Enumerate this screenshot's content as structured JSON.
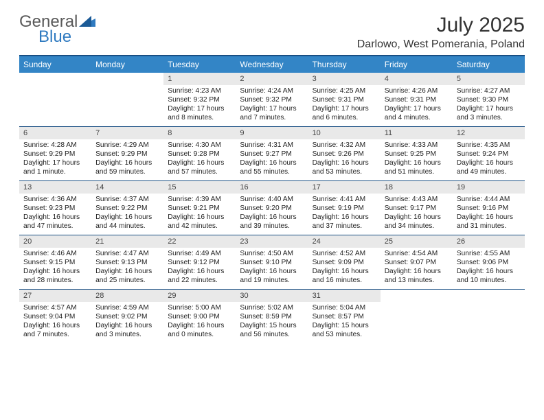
{
  "brand": {
    "word1": "General",
    "word2": "Blue"
  },
  "title": "July 2025",
  "location": "Darlowo, West Pomerania, Poland",
  "dayNames": [
    "Sunday",
    "Monday",
    "Tuesday",
    "Wednesday",
    "Thursday",
    "Friday",
    "Saturday"
  ],
  "colors": {
    "header_bg": "#3385c6",
    "border": "#184e83",
    "daynum_bg": "#e9e9e9",
    "brand_blue": "#2f7ac0",
    "text": "#222222"
  },
  "weeks": [
    [
      {
        "n": "",
        "lines": []
      },
      {
        "n": "",
        "lines": []
      },
      {
        "n": "1",
        "lines": [
          "Sunrise: 4:23 AM",
          "Sunset: 9:32 PM",
          "Daylight: 17 hours",
          "and 8 minutes."
        ]
      },
      {
        "n": "2",
        "lines": [
          "Sunrise: 4:24 AM",
          "Sunset: 9:32 PM",
          "Daylight: 17 hours",
          "and 7 minutes."
        ]
      },
      {
        "n": "3",
        "lines": [
          "Sunrise: 4:25 AM",
          "Sunset: 9:31 PM",
          "Daylight: 17 hours",
          "and 6 minutes."
        ]
      },
      {
        "n": "4",
        "lines": [
          "Sunrise: 4:26 AM",
          "Sunset: 9:31 PM",
          "Daylight: 17 hours",
          "and 4 minutes."
        ]
      },
      {
        "n": "5",
        "lines": [
          "Sunrise: 4:27 AM",
          "Sunset: 9:30 PM",
          "Daylight: 17 hours",
          "and 3 minutes."
        ]
      }
    ],
    [
      {
        "n": "6",
        "lines": [
          "Sunrise: 4:28 AM",
          "Sunset: 9:29 PM",
          "Daylight: 17 hours",
          "and 1 minute."
        ]
      },
      {
        "n": "7",
        "lines": [
          "Sunrise: 4:29 AM",
          "Sunset: 9:29 PM",
          "Daylight: 16 hours",
          "and 59 minutes."
        ]
      },
      {
        "n": "8",
        "lines": [
          "Sunrise: 4:30 AM",
          "Sunset: 9:28 PM",
          "Daylight: 16 hours",
          "and 57 minutes."
        ]
      },
      {
        "n": "9",
        "lines": [
          "Sunrise: 4:31 AM",
          "Sunset: 9:27 PM",
          "Daylight: 16 hours",
          "and 55 minutes."
        ]
      },
      {
        "n": "10",
        "lines": [
          "Sunrise: 4:32 AM",
          "Sunset: 9:26 PM",
          "Daylight: 16 hours",
          "and 53 minutes."
        ]
      },
      {
        "n": "11",
        "lines": [
          "Sunrise: 4:33 AM",
          "Sunset: 9:25 PM",
          "Daylight: 16 hours",
          "and 51 minutes."
        ]
      },
      {
        "n": "12",
        "lines": [
          "Sunrise: 4:35 AM",
          "Sunset: 9:24 PM",
          "Daylight: 16 hours",
          "and 49 minutes."
        ]
      }
    ],
    [
      {
        "n": "13",
        "lines": [
          "Sunrise: 4:36 AM",
          "Sunset: 9:23 PM",
          "Daylight: 16 hours",
          "and 47 minutes."
        ]
      },
      {
        "n": "14",
        "lines": [
          "Sunrise: 4:37 AM",
          "Sunset: 9:22 PM",
          "Daylight: 16 hours",
          "and 44 minutes."
        ]
      },
      {
        "n": "15",
        "lines": [
          "Sunrise: 4:39 AM",
          "Sunset: 9:21 PM",
          "Daylight: 16 hours",
          "and 42 minutes."
        ]
      },
      {
        "n": "16",
        "lines": [
          "Sunrise: 4:40 AM",
          "Sunset: 9:20 PM",
          "Daylight: 16 hours",
          "and 39 minutes."
        ]
      },
      {
        "n": "17",
        "lines": [
          "Sunrise: 4:41 AM",
          "Sunset: 9:19 PM",
          "Daylight: 16 hours",
          "and 37 minutes."
        ]
      },
      {
        "n": "18",
        "lines": [
          "Sunrise: 4:43 AM",
          "Sunset: 9:17 PM",
          "Daylight: 16 hours",
          "and 34 minutes."
        ]
      },
      {
        "n": "19",
        "lines": [
          "Sunrise: 4:44 AM",
          "Sunset: 9:16 PM",
          "Daylight: 16 hours",
          "and 31 minutes."
        ]
      }
    ],
    [
      {
        "n": "20",
        "lines": [
          "Sunrise: 4:46 AM",
          "Sunset: 9:15 PM",
          "Daylight: 16 hours",
          "and 28 minutes."
        ]
      },
      {
        "n": "21",
        "lines": [
          "Sunrise: 4:47 AM",
          "Sunset: 9:13 PM",
          "Daylight: 16 hours",
          "and 25 minutes."
        ]
      },
      {
        "n": "22",
        "lines": [
          "Sunrise: 4:49 AM",
          "Sunset: 9:12 PM",
          "Daylight: 16 hours",
          "and 22 minutes."
        ]
      },
      {
        "n": "23",
        "lines": [
          "Sunrise: 4:50 AM",
          "Sunset: 9:10 PM",
          "Daylight: 16 hours",
          "and 19 minutes."
        ]
      },
      {
        "n": "24",
        "lines": [
          "Sunrise: 4:52 AM",
          "Sunset: 9:09 PM",
          "Daylight: 16 hours",
          "and 16 minutes."
        ]
      },
      {
        "n": "25",
        "lines": [
          "Sunrise: 4:54 AM",
          "Sunset: 9:07 PM",
          "Daylight: 16 hours",
          "and 13 minutes."
        ]
      },
      {
        "n": "26",
        "lines": [
          "Sunrise: 4:55 AM",
          "Sunset: 9:06 PM",
          "Daylight: 16 hours",
          "and 10 minutes."
        ]
      }
    ],
    [
      {
        "n": "27",
        "lines": [
          "Sunrise: 4:57 AM",
          "Sunset: 9:04 PM",
          "Daylight: 16 hours",
          "and 7 minutes."
        ]
      },
      {
        "n": "28",
        "lines": [
          "Sunrise: 4:59 AM",
          "Sunset: 9:02 PM",
          "Daylight: 16 hours",
          "and 3 minutes."
        ]
      },
      {
        "n": "29",
        "lines": [
          "Sunrise: 5:00 AM",
          "Sunset: 9:00 PM",
          "Daylight: 16 hours",
          "and 0 minutes."
        ]
      },
      {
        "n": "30",
        "lines": [
          "Sunrise: 5:02 AM",
          "Sunset: 8:59 PM",
          "Daylight: 15 hours",
          "and 56 minutes."
        ]
      },
      {
        "n": "31",
        "lines": [
          "Sunrise: 5:04 AM",
          "Sunset: 8:57 PM",
          "Daylight: 15 hours",
          "and 53 minutes."
        ]
      },
      {
        "n": "",
        "lines": []
      },
      {
        "n": "",
        "lines": []
      }
    ]
  ]
}
